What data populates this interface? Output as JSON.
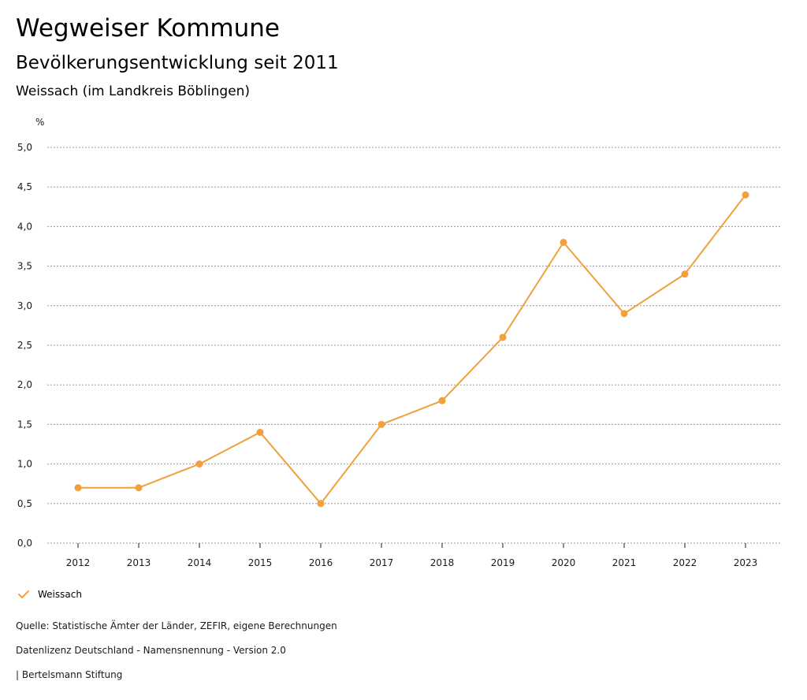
{
  "header": {
    "title": "Wegweiser Kommune",
    "subtitle": "Bevölkerungsentwicklung seit 2011",
    "region": "Weissach (im Landkreis Böblingen)"
  },
  "colors": {
    "series": "#f0a03c",
    "grid": "#999999",
    "text": "#1a1a1a"
  },
  "chart_data": {
    "type": "line",
    "title": "Bevölkerungsentwicklung seit 2011",
    "subtitle": "Weissach (im Landkreis Böblingen)",
    "ylabel": "%",
    "xlabel": "",
    "ylim": [
      0,
      5
    ],
    "yticks": [
      "0,0",
      "0,5",
      "1,0",
      "1,5",
      "2,0",
      "2,5",
      "3,0",
      "3,5",
      "4,0",
      "4,5",
      "5,0"
    ],
    "ytick_values": [
      0,
      0.5,
      1,
      1.5,
      2,
      2.5,
      3,
      3.5,
      4,
      4.5,
      5
    ],
    "grid": true,
    "legend_position": "bottom-left",
    "categories": [
      "2012",
      "2013",
      "2014",
      "2015",
      "2016",
      "2017",
      "2018",
      "2019",
      "2020",
      "2021",
      "2022",
      "2023"
    ],
    "series": [
      {
        "name": "Weissach",
        "values": [
          0.7,
          0.7,
          1.0,
          1.4,
          0.5,
          1.5,
          1.8,
          2.6,
          3.8,
          2.9,
          3.4,
          4.4
        ]
      }
    ]
  },
  "legend": {
    "label": "Weissach",
    "icon": "check-icon"
  },
  "footer": {
    "source": "Quelle: Statistische Ämter der Länder, ZEFIR, eigene Berechnungen",
    "license": "Datenlizenz Deutschland - Namensnennung - Version 2.0",
    "publisher": "| Bertelsmann Stiftung"
  }
}
